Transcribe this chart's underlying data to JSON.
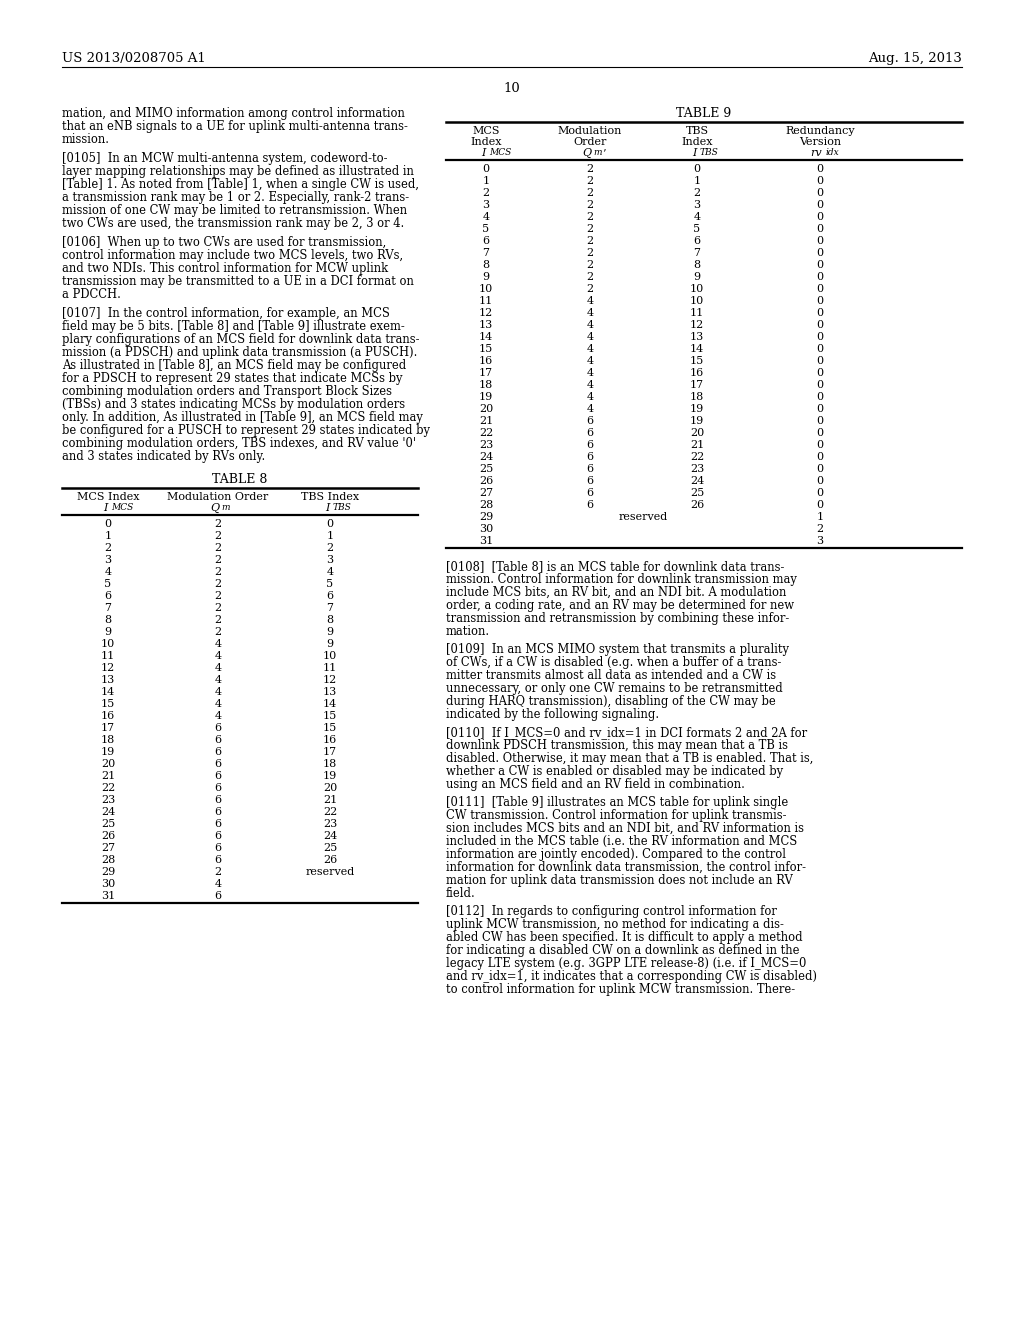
{
  "bg_color": "#ffffff",
  "header_left": "US 2013/0208705 A1",
  "header_right": "Aug. 15, 2013",
  "page_number": "10",
  "table8_title": "TABLE 8",
  "table8_data": [
    [
      "0",
      "2",
      "0"
    ],
    [
      "1",
      "2",
      "1"
    ],
    [
      "2",
      "2",
      "2"
    ],
    [
      "3",
      "2",
      "3"
    ],
    [
      "4",
      "2",
      "4"
    ],
    [
      "5",
      "2",
      "5"
    ],
    [
      "6",
      "2",
      "6"
    ],
    [
      "7",
      "2",
      "7"
    ],
    [
      "8",
      "2",
      "8"
    ],
    [
      "9",
      "2",
      "9"
    ],
    [
      "10",
      "4",
      "9"
    ],
    [
      "11",
      "4",
      "10"
    ],
    [
      "12",
      "4",
      "11"
    ],
    [
      "13",
      "4",
      "12"
    ],
    [
      "14",
      "4",
      "13"
    ],
    [
      "15",
      "4",
      "14"
    ],
    [
      "16",
      "4",
      "15"
    ],
    [
      "17",
      "6",
      "15"
    ],
    [
      "18",
      "6",
      "16"
    ],
    [
      "19",
      "6",
      "17"
    ],
    [
      "20",
      "6",
      "18"
    ],
    [
      "21",
      "6",
      "19"
    ],
    [
      "22",
      "6",
      "20"
    ],
    [
      "23",
      "6",
      "21"
    ],
    [
      "24",
      "6",
      "22"
    ],
    [
      "25",
      "6",
      "23"
    ],
    [
      "26",
      "6",
      "24"
    ],
    [
      "27",
      "6",
      "25"
    ],
    [
      "28",
      "6",
      "26"
    ],
    [
      "29",
      "2",
      "reserved"
    ],
    [
      "30",
      "4",
      ""
    ],
    [
      "31",
      "6",
      ""
    ]
  ],
  "table9_title": "TABLE 9",
  "table9_data": [
    [
      "0",
      "2",
      "0",
      "0"
    ],
    [
      "1",
      "2",
      "1",
      "0"
    ],
    [
      "2",
      "2",
      "2",
      "0"
    ],
    [
      "3",
      "2",
      "3",
      "0"
    ],
    [
      "4",
      "2",
      "4",
      "0"
    ],
    [
      "5",
      "2",
      "5",
      "0"
    ],
    [
      "6",
      "2",
      "6",
      "0"
    ],
    [
      "7",
      "2",
      "7",
      "0"
    ],
    [
      "8",
      "2",
      "8",
      "0"
    ],
    [
      "9",
      "2",
      "9",
      "0"
    ],
    [
      "10",
      "2",
      "10",
      "0"
    ],
    [
      "11",
      "4",
      "10",
      "0"
    ],
    [
      "12",
      "4",
      "11",
      "0"
    ],
    [
      "13",
      "4",
      "12",
      "0"
    ],
    [
      "14",
      "4",
      "13",
      "0"
    ],
    [
      "15",
      "4",
      "14",
      "0"
    ],
    [
      "16",
      "4",
      "15",
      "0"
    ],
    [
      "17",
      "4",
      "16",
      "0"
    ],
    [
      "18",
      "4",
      "17",
      "0"
    ],
    [
      "19",
      "4",
      "18",
      "0"
    ],
    [
      "20",
      "4",
      "19",
      "0"
    ],
    [
      "21",
      "6",
      "19",
      "0"
    ],
    [
      "22",
      "6",
      "20",
      "0"
    ],
    [
      "23",
      "6",
      "21",
      "0"
    ],
    [
      "24",
      "6",
      "22",
      "0"
    ],
    [
      "25",
      "6",
      "23",
      "0"
    ],
    [
      "26",
      "6",
      "24",
      "0"
    ],
    [
      "27",
      "6",
      "25",
      "0"
    ],
    [
      "28",
      "6",
      "26",
      "0"
    ],
    [
      "29",
      "reserved",
      "",
      "1"
    ],
    [
      "30",
      "",
      "",
      "2"
    ],
    [
      "31",
      "",
      "",
      "3"
    ]
  ],
  "left_paras": [
    {
      "lines": [
        "mation, and MIMO information among control information",
        "that an eNB signals to a UE for uplink multi-antenna trans-",
        "mission."
      ],
      "bold_prefix": ""
    },
    {
      "lines": [
        "[0105]  In an MCW multi-antenna system, codeword-to-",
        "layer mapping relationships may be defined as illustrated in",
        "[Table] 1. As noted from [Table] 1, when a single CW is used,",
        "a transmission rank may be 1 or 2. Especially, rank-2 trans-",
        "mission of one CW may be limited to retransmission. When",
        "two CWs are used, the transmission rank may be 2, 3 or 4."
      ],
      "bold_prefix": "[0105]"
    },
    {
      "lines": [
        "[0106]  When up to two CWs are used for transmission,",
        "control information may include two MCS levels, two RVs,",
        "and two NDIs. This control information for MCW uplink",
        "transmission may be transmitted to a UE in a DCI format on",
        "a PDCCH."
      ],
      "bold_prefix": "[0106]"
    },
    {
      "lines": [
        "[0107]  In the control information, for example, an MCS",
        "field may be 5 bits. [Table 8] and [Table 9] illustrate exem-",
        "plary configurations of an MCS field for downlink data trans-",
        "mission (a PDSCH) and uplink data transmission (a PUSCH).",
        "As illustrated in [Table 8], an MCS field may be configured",
        "for a PDSCH to represent 29 states that indicate MCSs by",
        "combining modulation orders and Transport Block Sizes",
        "(TBSs) and 3 states indicating MCSs by modulation orders",
        "only. In addition, As illustrated in [Table 9], an MCS field may",
        "be configured for a PUSCH to represent 29 states indicated by",
        "combining modulation orders, TBS indexes, and RV value '0'",
        "and 3 states indicated by RVs only."
      ],
      "bold_prefix": "[0107]"
    }
  ],
  "right_paras": [
    {
      "lines": [
        "[0108]  [Table 8] is an MCS table for downlink data trans-",
        "mission. Control information for downlink transmission may",
        "include MCS bits, an RV bit, and an NDI bit. A modulation",
        "order, a coding rate, and an RV may be determined for new",
        "transmission and retransmission by combining these infor-",
        "mation."
      ],
      "bold_prefix": "[0108]"
    },
    {
      "lines": [
        "[0109]  In an MCS MIMO system that transmits a plurality",
        "of CWs, if a CW is disabled (e.g. when a buffer of a trans-",
        "mitter transmits almost all data as intended and a CW is",
        "unnecessary, or only one CW remains to be retransmitted",
        "during HARQ transmission), disabling of the CW may be",
        "indicated by the following signaling."
      ],
      "bold_prefix": "[0109]"
    },
    {
      "lines": [
        "[0110]  If I_MCS=0 and rv_idx=1 in DCI formats 2 and 2A for",
        "downlink PDSCH transmission, this may mean that a TB is",
        "disabled. Otherwise, it may mean that a TB is enabled. That is,",
        "whether a CW is enabled or disabled may be indicated by",
        "using an MCS field and an RV field in combination."
      ],
      "bold_prefix": "[0110]"
    },
    {
      "lines": [
        "[0111]  [Table 9] illustrates an MCS table for uplink single",
        "CW transmission. Control information for uplink transmis-",
        "sion includes MCS bits and an NDI bit, and RV information is",
        "included in the MCS table (i.e. the RV information and MCS",
        "information are jointly encoded). Compared to the control",
        "information for downlink data transmission, the control infor-",
        "mation for uplink data transmission does not include an RV",
        "field."
      ],
      "bold_prefix": "[0111]"
    },
    {
      "lines": [
        "[0112]  In regards to configuring control information for",
        "uplink MCW transmission, no method for indicating a dis-",
        "abled CW has been specified. It is difficult to apply a method",
        "for indicating a disabled CW on a downlink as defined in the",
        "legacy LTE system (e.g. 3GPP LTE release-8) (i.e. if I_MCS=0",
        "and rv_idx=1, it indicates that a corresponding CW is disabled)",
        "to control information for uplink MCW transmission. There-"
      ],
      "bold_prefix": "[0112]"
    }
  ]
}
